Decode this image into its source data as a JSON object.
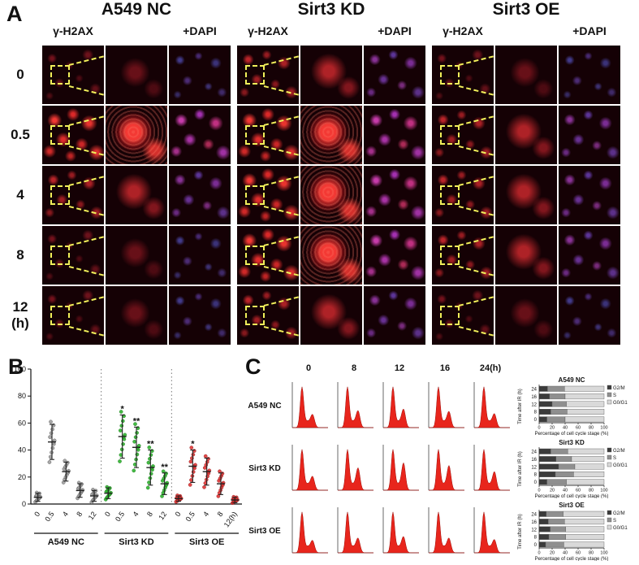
{
  "figure": {
    "panelA": {
      "label": "A",
      "groups": [
        {
          "title": "A549 NC",
          "stain_left": "γ-H2AX",
          "stain_right": "+DAPI"
        },
        {
          "title": "Sirt3 KD",
          "stain_left": "γ-H2AX",
          "stain_right": "+DAPI"
        },
        {
          "title": "Sirt3 OE",
          "stain_left": "γ-H2AX",
          "stain_right": "+DAPI"
        }
      ],
      "rows": [
        {
          "t": "0",
          "unit": ""
        },
        {
          "t": "0.5",
          "unit": ""
        },
        {
          "t": "4",
          "unit": ""
        },
        {
          "t": "8",
          "unit": ""
        },
        {
          "t": "12",
          "unit": "(h)"
        }
      ]
    },
    "panelB": {
      "label": "B"
    },
    "panelC": {
      "label": "C",
      "col_headers": [
        "0",
        "8",
        "12",
        "16",
        "24(h)"
      ],
      "row_labels": [
        "A549 NC",
        "Sirt3 KD",
        "Sirt3 OE"
      ]
    }
  },
  "chart_data": [
    {
      "id": "panel-b-dot-plot",
      "type": "scatter",
      "title": "",
      "xlabel": "",
      "ylabel": "",
      "ylim": [
        0,
        100
      ],
      "yticks": [
        0,
        20,
        40,
        60,
        80,
        100
      ],
      "groups": [
        {
          "name": "A549 NC",
          "color": "#a0a0a0",
          "stroke": "#555555",
          "tick_labels": [
            "0",
            "0.5",
            "4",
            "8",
            "12"
          ],
          "means": [
            5,
            46,
            24,
            10,
            6
          ],
          "sd": [
            3,
            13,
            7,
            5,
            4
          ],
          "sig": [
            "",
            "",
            "",
            "",
            ""
          ]
        },
        {
          "name": "Sirt3 KD",
          "color": "#2fb42f",
          "stroke": "#1a7a1a",
          "tick_labels": [
            "0",
            "0.5",
            "4",
            "8",
            "12"
          ],
          "means": [
            8,
            50,
            42,
            27,
            15
          ],
          "sd": [
            4,
            16,
            15,
            13,
            8
          ],
          "sig": [
            "",
            "*",
            "**",
            "**",
            "**"
          ]
        },
        {
          "name": "Sirt3 OE",
          "color": "#e23535",
          "stroke": "#8f1616",
          "tick_labels": [
            "0",
            "0.5",
            "4",
            "8",
            "12(h)"
          ],
          "means": [
            4,
            28,
            24,
            15,
            3
          ],
          "sd": [
            2,
            12,
            10,
            8,
            2
          ],
          "sig": [
            "",
            "*",
            "",
            "",
            ""
          ]
        }
      ]
    },
    {
      "id": "panel-c-cell-cycle",
      "type": "stacked-bar-horizontal",
      "xlabel": "Percentage of cell cycle stage (%)",
      "ylabel": "Time after IR (h)",
      "xticks": [
        0,
        20,
        40,
        60,
        80,
        100
      ],
      "categories": [
        "24",
        "16",
        "12",
        "8",
        "0"
      ],
      "series_names": [
        "G2/M",
        "S",
        "G0/G1"
      ],
      "series_colors": [
        "#3b3b3b",
        "#8f8f8f",
        "#d9d9d9"
      ],
      "charts": [
        {
          "title": "A549 NC",
          "values": {
            "G2/M": [
              13,
              16,
              20,
              18,
              12
            ],
            "S": [
              26,
              24,
              22,
              25,
              28
            ],
            "G0/G1": [
              61,
              60,
              58,
              57,
              60
            ]
          }
        },
        {
          "title": "Sirt3 KD",
          "values": {
            "G2/M": [
              18,
              26,
              30,
              25,
              12
            ],
            "S": [
              26,
              24,
              25,
              28,
              30
            ],
            "G0/G1": [
              56,
              50,
              45,
              47,
              58
            ]
          }
        },
        {
          "title": "Sirt3 OE",
          "values": {
            "G2/M": [
              11,
              14,
              17,
              15,
              10
            ],
            "S": [
              26,
              25,
              24,
              26,
              28
            ],
            "G0/G1": [
              63,
              61,
              59,
              59,
              62
            ]
          }
        }
      ]
    }
  ]
}
